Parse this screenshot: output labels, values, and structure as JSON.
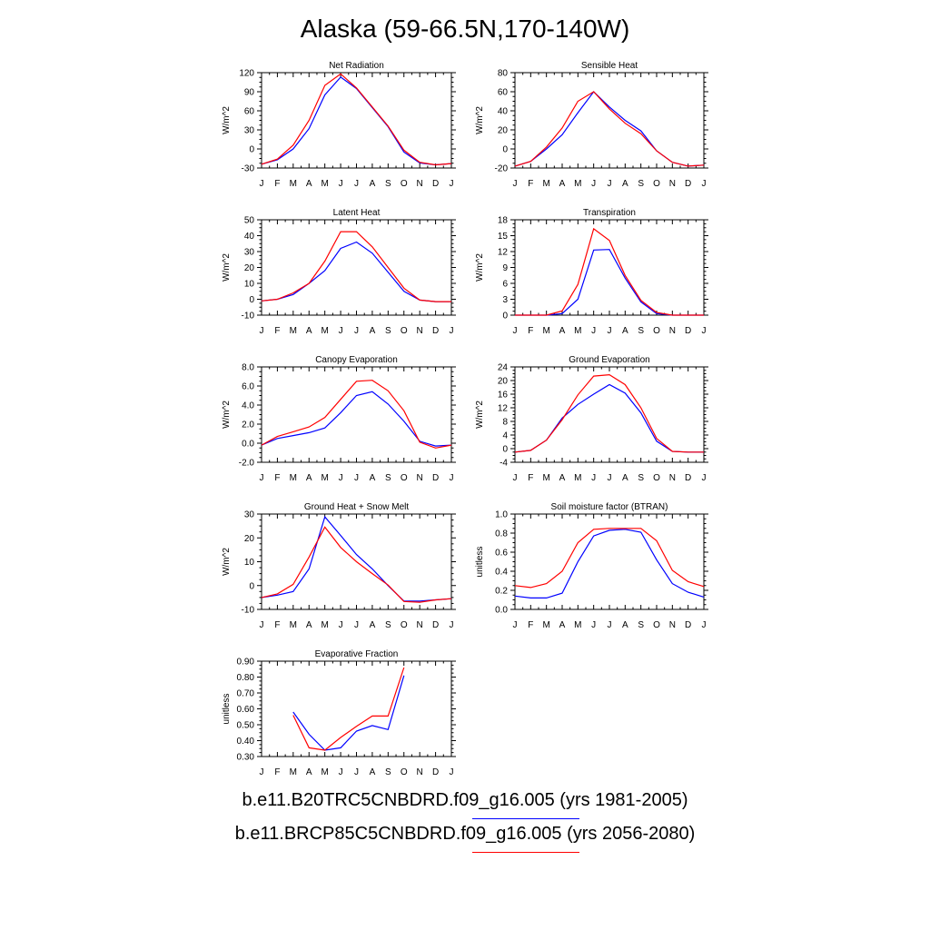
{
  "title": "Alaska (59-66.5N,170-140W)",
  "months": [
    "J",
    "F",
    "M",
    "A",
    "M",
    "J",
    "J",
    "A",
    "S",
    "O",
    "N",
    "D",
    "J"
  ],
  "colors": {
    "run1": "#0000ff",
    "run2": "#ff0000"
  },
  "legend": [
    {
      "text": "b.e11.B20TRC5CNBDRD.f09_g16.005 (yrs 1981-2005)",
      "color": "#0000ff"
    },
    {
      "text": "b.e11.BRCP85C5CNBDRD.f09_g16.005 (yrs 2056-2080)",
      "color": "#ff0000"
    }
  ],
  "chart_data": [
    {
      "type": "line",
      "title": "Net Radiation",
      "ylabel": "W/m^2",
      "ylim": [
        -30,
        120
      ],
      "yticks": [
        "-30",
        "0",
        "30",
        "60",
        "90",
        "120"
      ],
      "ytick_values": [
        -30,
        0,
        30,
        60,
        90,
        120
      ],
      "series": [
        {
          "values": [
            -24,
            -17,
            0,
            32,
            85,
            113,
            95,
            65,
            35,
            -5,
            -22,
            -25,
            -23
          ]
        },
        {
          "values": [
            -24,
            -16,
            6,
            45,
            100,
            118,
            96,
            66,
            36,
            -2,
            -21,
            -25,
            -23
          ]
        }
      ]
    },
    {
      "type": "line",
      "title": "Sensible Heat",
      "ylabel": "W/m^2",
      "ylim": [
        -20,
        80
      ],
      "yticks": [
        "-20",
        "0",
        "20",
        "40",
        "60",
        "80"
      ],
      "ytick_values": [
        -20,
        0,
        20,
        40,
        60,
        80
      ],
      "series": [
        {
          "values": [
            -18,
            -13,
            0,
            15,
            38,
            60,
            44,
            30,
            19,
            -2,
            -14,
            -18,
            -17
          ]
        },
        {
          "values": [
            -18,
            -13,
            2,
            22,
            50,
            60,
            42,
            27,
            16,
            -2,
            -14,
            -18,
            -17
          ]
        }
      ]
    },
    {
      "type": "line",
      "title": "Latent Heat",
      "ylabel": "W/m^2",
      "ylim": [
        -10,
        50
      ],
      "yticks": [
        "-10",
        "0",
        "10",
        "20",
        "30",
        "40",
        "50"
      ],
      "ytick_values": [
        -10,
        0,
        10,
        20,
        30,
        40,
        50
      ],
      "series": [
        {
          "values": [
            -1,
            0,
            3,
            10,
            18,
            32,
            36,
            29,
            17,
            5,
            -0.5,
            -1.5,
            -1.5
          ]
        },
        {
          "values": [
            -1,
            0,
            4,
            10,
            24,
            42.5,
            42.5,
            33,
            20,
            7,
            -0.5,
            -1.5,
            -1.5
          ]
        }
      ]
    },
    {
      "type": "line",
      "title": "Transpiration",
      "ylabel": "W/m^2",
      "ylim": [
        0,
        18
      ],
      "yticks": [
        "0",
        "3",
        "6",
        "9",
        "12",
        "15",
        "18"
      ],
      "ytick_values": [
        0,
        3,
        6,
        9,
        12,
        15,
        18
      ],
      "series": [
        {
          "values": [
            0,
            0,
            0,
            0.3,
            3,
            12.3,
            12.4,
            7,
            2.5,
            0.3,
            0,
            0,
            0
          ]
        },
        {
          "values": [
            0,
            0,
            0,
            0.8,
            5.8,
            16.3,
            14.1,
            7.5,
            2.8,
            0.5,
            0,
            0,
            0
          ]
        }
      ]
    },
    {
      "type": "line",
      "title": "Canopy Evaporation",
      "ylabel": "W/m^2",
      "ylim": [
        -2,
        8
      ],
      "yticks": [
        "-2.0",
        "0.0",
        "2.0",
        "4.0",
        "6.0",
        "8.0"
      ],
      "ytick_values": [
        -2,
        0,
        2,
        4,
        6,
        8
      ],
      "series": [
        {
          "values": [
            -0.2,
            0.5,
            0.8,
            1.1,
            1.6,
            3.2,
            5.0,
            5.4,
            4.1,
            2.3,
            0.2,
            -0.3,
            -0.2
          ]
        },
        {
          "values": [
            -0.2,
            0.7,
            1.2,
            1.7,
            2.7,
            4.6,
            6.5,
            6.6,
            5.5,
            3.4,
            0.1,
            -0.5,
            -0.2
          ]
        }
      ]
    },
    {
      "type": "line",
      "title": "Ground Evaporation",
      "ylabel": "W/m^2",
      "ylim": [
        -4,
        24
      ],
      "yticks": [
        "-4",
        "0",
        "4",
        "8",
        "12",
        "16",
        "20",
        "24"
      ],
      "ytick_values": [
        -4,
        0,
        4,
        8,
        12,
        16,
        20,
        24
      ],
      "series": [
        {
          "values": [
            -1,
            -0.5,
            2.5,
            9,
            13,
            16,
            18.8,
            16.3,
            10.5,
            2.2,
            -0.8,
            -1,
            -1
          ]
        },
        {
          "values": [
            -1,
            -0.5,
            2.5,
            8.5,
            15.8,
            21.3,
            21.7,
            18.8,
            12,
            3,
            -0.8,
            -1,
            -1
          ]
        }
      ]
    },
    {
      "type": "line",
      "title": "Ground Heat + Snow Melt",
      "ylabel": "W/m^2",
      "ylim": [
        -10,
        30
      ],
      "yticks": [
        "-10",
        "0",
        "10",
        "20",
        "30"
      ],
      "ytick_values": [
        -10,
        0,
        10,
        20,
        30
      ],
      "series": [
        {
          "values": [
            -5,
            -4,
            -2.5,
            7,
            28.8,
            21,
            13,
            7,
            0,
            -6.5,
            -6.5,
            -6,
            -5.5
          ]
        },
        {
          "values": [
            -5,
            -3.5,
            0.5,
            12,
            24.5,
            16,
            10,
            5,
            0.2,
            -6.7,
            -7,
            -6,
            -5.5
          ]
        }
      ]
    },
    {
      "type": "line",
      "title": "Soil moisture factor (BTRAN)",
      "ylabel": "unitless",
      "ylim": [
        0,
        1
      ],
      "yticks": [
        "0.0",
        "0.2",
        "0.4",
        "0.6",
        "0.8",
        "1.0"
      ],
      "ytick_values": [
        0,
        0.2,
        0.4,
        0.6,
        0.8,
        1.0
      ],
      "series": [
        {
          "values": [
            0.14,
            0.12,
            0.12,
            0.17,
            0.5,
            0.77,
            0.83,
            0.84,
            0.81,
            0.52,
            0.27,
            0.18,
            0.13
          ]
        },
        {
          "values": [
            0.25,
            0.23,
            0.27,
            0.4,
            0.7,
            0.84,
            0.85,
            0.85,
            0.85,
            0.72,
            0.41,
            0.29,
            0.24
          ]
        }
      ]
    },
    {
      "type": "line",
      "title": "Evaporative Fraction",
      "ylabel": "unitless",
      "ylim": [
        0.3,
        0.9
      ],
      "yticks": [
        "0.30",
        "0.40",
        "0.50",
        "0.60",
        "0.70",
        "0.80",
        "0.90"
      ],
      "ytick_values": [
        0.3,
        0.4,
        0.5,
        0.6,
        0.7,
        0.8,
        0.9
      ],
      "series": [
        {
          "values": [
            null,
            null,
            0.58,
            0.44,
            0.34,
            0.355,
            0.46,
            0.495,
            0.47,
            0.81,
            null,
            null,
            null
          ]
        },
        {
          "values": [
            null,
            null,
            0.56,
            0.355,
            0.34,
            0.42,
            0.49,
            0.555,
            0.555,
            0.86,
            null,
            null,
            null
          ]
        }
      ]
    }
  ]
}
